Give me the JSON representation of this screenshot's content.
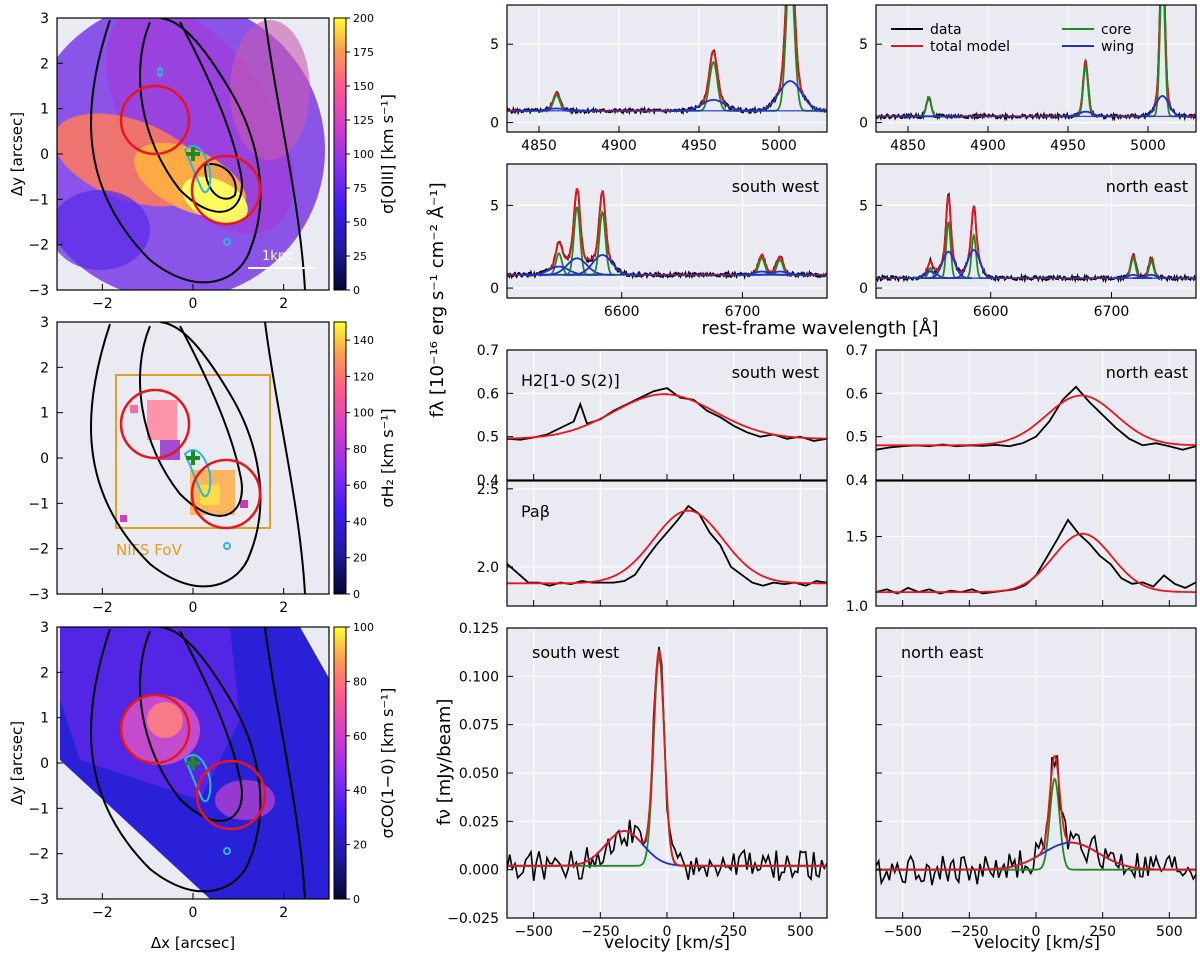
{
  "chart_data": [
    {
      "type": "heatmap",
      "id": "map-oiii",
      "xlabel": "",
      "ylabel": "Δy [arcsec]",
      "xlim": [
        -3,
        3
      ],
      "ylim": [
        -3,
        3
      ],
      "xticks": [
        -2,
        0,
        2
      ],
      "yticks": [
        -3,
        -2,
        -1,
        0,
        1,
        2,
        3
      ],
      "colorbar": {
        "label": "σ[OIII] [km s⁻¹]",
        "min": 0,
        "max": 200,
        "ticks": [
          0,
          25,
          50,
          75,
          100,
          125,
          150,
          175,
          200
        ]
      },
      "annotations": [
        "1kpc"
      ],
      "apertures": [
        {
          "x": -0.8,
          "y": 0.8,
          "r": 0.75
        },
        {
          "x": 0.75,
          "y": -0.75,
          "r": 0.75
        }
      ],
      "centre": {
        "x": 0,
        "y": 0
      }
    },
    {
      "type": "heatmap",
      "id": "map-h2",
      "xlabel": "",
      "ylabel": "",
      "xlim": [
        -3,
        3
      ],
      "ylim": [
        -3,
        3
      ],
      "xticks": [
        -2,
        0,
        2
      ],
      "yticks": [
        -3,
        -2,
        -1,
        0,
        1,
        2,
        3
      ],
      "colorbar": {
        "label": "σH₂ [km s⁻¹]",
        "min": 0,
        "max": 150,
        "ticks": [
          0,
          20,
          40,
          60,
          80,
          100,
          120,
          140
        ]
      },
      "annotations": [
        "NIFS FoV"
      ],
      "fov": {
        "x0": -1.65,
        "x1": 1.65,
        "y0": -1.5,
        "y1": 1.9
      },
      "apertures": [
        {
          "x": -0.8,
          "y": 0.8,
          "r": 0.75
        },
        {
          "x": 0.75,
          "y": -0.75,
          "r": 0.75
        }
      ],
      "centre": {
        "x": 0,
        "y": 0
      }
    },
    {
      "type": "heatmap",
      "id": "map-co",
      "xlabel": "Δx [arcsec]",
      "ylabel": "Δy [arcsec]",
      "xlim": [
        -3,
        3
      ],
      "ylim": [
        -3,
        3
      ],
      "xticks": [
        -2,
        0,
        2
      ],
      "yticks": [
        -3,
        -2,
        -1,
        0,
        1,
        2,
        3
      ],
      "colorbar": {
        "label": "σCO(1−0) [km s⁻¹]",
        "min": 0,
        "max": 100,
        "ticks": [
          0,
          20,
          40,
          60,
          80,
          100
        ]
      },
      "apertures": [
        {
          "x": -0.8,
          "y": 0.8,
          "r": 0.75
        },
        {
          "x": 0.75,
          "y": -0.75,
          "r": 0.75
        }
      ],
      "centre": {
        "x": 0,
        "y": 0
      }
    },
    {
      "type": "line",
      "id": "spec-hb-sw",
      "xlim": [
        4830,
        5030
      ],
      "ylim": [
        -0.6,
        7.5
      ],
      "xticks": [
        4850,
        4900,
        4950,
        5000
      ],
      "yticks": [
        0,
        5
      ],
      "continuum": 0.75,
      "lines": [
        {
          "center": 4861,
          "core": 1.0,
          "wing": 0.15,
          "sc": 2.0,
          "sw": 6.0
        },
        {
          "center": 4959,
          "core": 3.1,
          "wing": 0.7,
          "sc": 2.5,
          "sw": 7.0
        },
        {
          "center": 5007,
          "core": 9.4,
          "wing": 1.9,
          "sc": 2.5,
          "sw": 7.0
        }
      ]
    },
    {
      "type": "line",
      "id": "spec-hb-ne",
      "xlim": [
        4830,
        5030
      ],
      "ylim": [
        -0.6,
        7.5
      ],
      "xticks": [
        4850,
        4900,
        4950,
        5000
      ],
      "yticks": [
        0,
        5
      ],
      "continuum": 0.4,
      "legend": [
        "data",
        "total model",
        "core",
        "wing"
      ],
      "lines": [
        {
          "center": 4863,
          "core": 1.2,
          "wing": 0.0,
          "sc": 1.5,
          "sw": 5.0
        },
        {
          "center": 4961,
          "core": 3.2,
          "wing": 0.3,
          "sc": 1.5,
          "sw": 4.0
        },
        {
          "center": 5009,
          "core": 9.6,
          "wing": 1.3,
          "sc": 1.5,
          "sw": 4.0
        }
      ]
    },
    {
      "type": "line",
      "id": "spec-ha-sw",
      "xlim": [
        6505,
        6770
      ],
      "ylim": [
        -0.6,
        7.5
      ],
      "xticks": [
        6600,
        6700
      ],
      "yticks": [
        0,
        5
      ],
      "continuum": 0.8,
      "title": "south west",
      "lines": [
        {
          "center": 6548,
          "core": 1.3,
          "wing": 0.5,
          "sc": 2.5,
          "sw": 8.0
        },
        {
          "center": 6563,
          "core": 4.1,
          "wing": 1.0,
          "sc": 2.5,
          "sw": 8.0
        },
        {
          "center": 6584,
          "core": 3.8,
          "wing": 1.2,
          "sc": 2.5,
          "sw": 8.0
        },
        {
          "center": 6716,
          "core": 1.0,
          "wing": 0.2,
          "sc": 2.5,
          "sw": 6.0
        },
        {
          "center": 6731,
          "core": 0.9,
          "wing": 0.2,
          "sc": 2.5,
          "sw": 6.0
        }
      ]
    },
    {
      "type": "line",
      "id": "spec-ha-ne",
      "xlim": [
        6505,
        6770
      ],
      "ylim": [
        -0.6,
        7.5
      ],
      "xticks": [
        6600,
        6700
      ],
      "yticks": [
        0,
        5
      ],
      "continuum": 0.6,
      "title": "north east",
      "lines": [
        {
          "center": 6550,
          "core": 0.6,
          "wing": 0.4,
          "sc": 1.8,
          "sw": 5.0
        },
        {
          "center": 6565,
          "core": 3.4,
          "wing": 1.6,
          "sc": 1.8,
          "sw": 5.0
        },
        {
          "center": 6586,
          "core": 2.6,
          "wing": 1.7,
          "sc": 1.8,
          "sw": 5.0
        },
        {
          "center": 6718,
          "core": 1.2,
          "wing": 0.2,
          "sc": 2.0,
          "sw": 4.0
        },
        {
          "center": 6733,
          "core": 1.0,
          "wing": 0.2,
          "sc": 2.0,
          "sw": 4.0
        }
      ]
    },
    {
      "type": "line",
      "id": "vel-h2-sw",
      "xlim": [
        -600,
        600
      ],
      "ylim": [
        0.4,
        0.7
      ],
      "xticks": [
        -500,
        -250,
        0,
        250,
        500
      ],
      "yticks": [
        0.4,
        0.5,
        0.6,
        0.7
      ],
      "ytick_labels": [
        "0.4",
        "0.5",
        "0.6",
        "0.7"
      ],
      "title": "south west",
      "label": "H2[1-0 S(2)]",
      "model": {
        "base": 0.495,
        "amp": 0.103,
        "center": -10,
        "sigma": 190
      },
      "data_x": [
        -600,
        -550,
        -500,
        -450,
        -400,
        -350,
        -325,
        -300,
        -250,
        -200,
        -150,
        -100,
        -50,
        0,
        50,
        100,
        150,
        200,
        250,
        300,
        350,
        400,
        450,
        500,
        550,
        600
      ],
      "data_y": [
        0.495,
        0.493,
        0.498,
        0.505,
        0.52,
        0.535,
        0.575,
        0.53,
        0.54,
        0.56,
        0.575,
        0.59,
        0.605,
        0.612,
        0.59,
        0.585,
        0.56,
        0.545,
        0.525,
        0.51,
        0.5,
        0.505,
        0.495,
        0.5,
        0.49,
        0.495
      ]
    },
    {
      "type": "line",
      "id": "vel-h2-ne",
      "xlim": [
        -600,
        600
      ],
      "ylim": [
        0.4,
        0.7
      ],
      "xticks": [
        -500,
        -250,
        0,
        250,
        500
      ],
      "yticks": [
        0.4,
        0.5,
        0.6,
        0.7
      ],
      "ytick_labels": [
        "0.4",
        "0.5",
        "0.6",
        "0.7"
      ],
      "title": "north east",
      "model": {
        "base": 0.48,
        "amp": 0.115,
        "center": 170,
        "sigma": 130
      },
      "data_x": [
        -600,
        -550,
        -500,
        -450,
        -400,
        -350,
        -300,
        -250,
        -200,
        -150,
        -100,
        -50,
        0,
        50,
        100,
        150,
        200,
        250,
        300,
        350,
        400,
        450,
        500,
        550,
        600
      ],
      "data_y": [
        0.47,
        0.475,
        0.478,
        0.48,
        0.478,
        0.482,
        0.478,
        0.48,
        0.479,
        0.481,
        0.478,
        0.485,
        0.5,
        0.535,
        0.585,
        0.615,
        0.58,
        0.55,
        0.52,
        0.495,
        0.48,
        0.485,
        0.478,
        0.47,
        0.478
      ]
    },
    {
      "type": "line",
      "id": "vel-pab-sw",
      "xlim": [
        -600,
        600
      ],
      "ylim": [
        1.75,
        2.55
      ],
      "xticks": [
        -500,
        -250,
        0,
        250,
        500
      ],
      "yticks": [
        2.0,
        2.5
      ],
      "ytick_labels": [
        "2.0",
        "2.5"
      ],
      "label": "Paβ",
      "model": {
        "base": 1.895,
        "amp": 0.465,
        "center": 80,
        "sigma": 130
      },
      "data_x": [
        -600,
        -560,
        -520,
        -480,
        -440,
        -400,
        -360,
        -320,
        -280,
        -240,
        -200,
        -160,
        -120,
        -80,
        -40,
        0,
        40,
        80,
        120,
        160,
        200,
        240,
        280,
        320,
        360,
        400,
        440,
        480,
        520,
        560,
        600
      ],
      "data_y": [
        2.02,
        1.96,
        1.9,
        1.9,
        1.88,
        1.9,
        1.89,
        1.91,
        1.9,
        1.9,
        1.9,
        1.91,
        1.95,
        2.05,
        2.14,
        2.22,
        2.3,
        2.39,
        2.34,
        2.22,
        2.14,
        2.0,
        1.95,
        1.9,
        1.88,
        1.9,
        1.89,
        1.9,
        1.88,
        1.91,
        1.9
      ]
    },
    {
      "type": "line",
      "id": "vel-pab-ne",
      "xlim": [
        -600,
        600
      ],
      "ylim": [
        1.0,
        1.9
      ],
      "xticks": [
        -500,
        -250,
        0,
        250,
        500
      ],
      "yticks": [
        1.0,
        1.5
      ],
      "ytick_labels": [
        "1.0",
        "1.5"
      ],
      "model": {
        "base": 1.1,
        "amp": 0.42,
        "center": 175,
        "sigma": 110
      },
      "data_x": [
        -600,
        -560,
        -520,
        -480,
        -440,
        -400,
        -360,
        -320,
        -280,
        -240,
        -200,
        -160,
        -120,
        -80,
        -40,
        0,
        40,
        80,
        120,
        160,
        200,
        240,
        280,
        320,
        360,
        400,
        440,
        480,
        520,
        560,
        600
      ],
      "data_y": [
        1.1,
        1.12,
        1.09,
        1.13,
        1.1,
        1.12,
        1.09,
        1.11,
        1.1,
        1.12,
        1.09,
        1.1,
        1.11,
        1.12,
        1.15,
        1.22,
        1.35,
        1.48,
        1.62,
        1.52,
        1.45,
        1.36,
        1.3,
        1.2,
        1.16,
        1.17,
        1.14,
        1.22,
        1.16,
        1.13,
        1.17
      ]
    },
    {
      "type": "line",
      "id": "vel-co-sw",
      "xlim": [
        -600,
        600
      ],
      "ylim": [
        -0.025,
        0.125
      ],
      "xticks": [
        -500,
        -250,
        0,
        250,
        500
      ],
      "yticks": [
        -0.025,
        0.0,
        0.025,
        0.05,
        0.075,
        0.1,
        0.125
      ],
      "ytick_labels": [
        "−0.025",
        "0.000",
        "0.025",
        "0.050",
        "0.075",
        "0.100",
        "0.125"
      ],
      "title": "south west",
      "core": {
        "amp": 0.108,
        "center": -30,
        "sigma": 20
      },
      "wing": {
        "amp": 0.018,
        "center": -160,
        "sigma": 70
      },
      "base": 0.002
    },
    {
      "type": "line",
      "id": "vel-co-ne",
      "xlim": [
        -600,
        600
      ],
      "ylim": [
        -0.025,
        0.125
      ],
      "xticks": [
        -500,
        -250,
        0,
        250,
        500
      ],
      "yticks": [
        -0.025,
        0.0,
        0.025,
        0.05,
        0.075,
        0.1,
        0.125
      ],
      "title": "north east",
      "core": {
        "amp": 0.047,
        "center": 70,
        "sigma": 18
      },
      "wing": {
        "amp": 0.014,
        "center": 130,
        "sigma": 105
      },
      "base": 0.0
    }
  ],
  "labels": {
    "xlabel_spectra": "rest-frame wavelength [Å]",
    "xlabel_velocity": "velocity [km/s]",
    "ylabel_flambda": "fλ [10⁻¹⁶ erg s⁻¹ cm⁻² Å⁻¹]",
    "ylabel_fnu": "fν [mJy/beam]",
    "xlabel_maps": "Δx [arcsec]",
    "ylabel_maps": "Δy [arcsec]"
  },
  "legend": {
    "data": "data",
    "total": "total model",
    "core": "core",
    "wing": "wing"
  },
  "colors": {
    "data": "#000000",
    "total": "#e8151b",
    "core": "#1f8a1f",
    "wing": "#1f2fd0",
    "panel_bg": "#eaeaf2",
    "grid": "#ffffff",
    "nifs": "#e0a020",
    "contour_cyan": "#27b8e0"
  }
}
